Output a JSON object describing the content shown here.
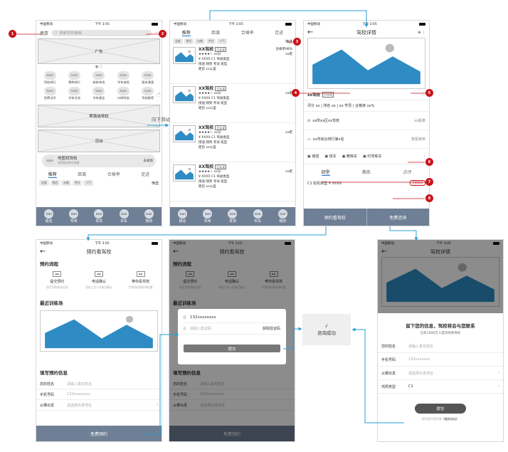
{
  "status": {
    "carrier": "中国移动",
    "time": "下午 3:05"
  },
  "home": {
    "city": "南京",
    "search_placeholder": "搜索驾校/教练",
    "msg_icon": "message-icon",
    "banner": "广告",
    "icons_row1": [
      "驾校排行",
      "教练排行",
      "新练车场",
      "学车流程",
      "租车满意"
    ],
    "icons_row2": [
      "免费试学",
      "学车交流",
      "学车基金",
      "口碑驾校",
      "驾校推荐"
    ],
    "icon_label": "icon",
    "box1": "帮我选驾校",
    "box2": "活动",
    "map_title": "地图找驾校",
    "map_sub": "找驾校去附近地图",
    "map_action": "去发现",
    "tabs": [
      "推荐",
      "距离",
      "合格率",
      "足迹"
    ],
    "chips": [
      "全部",
      "附近",
      "价格",
      "评分",
      "人气"
    ],
    "filter": "筛选",
    "nav": [
      "报名",
      "驾考",
      "发现",
      "买车",
      "我的"
    ]
  },
  "gesture": "向下滑动",
  "list": {
    "tabs": [
      "推荐",
      "距离",
      "合格率",
      "足迹"
    ],
    "chips": [
      "全部",
      "附近",
      "价格",
      "评分",
      "人气"
    ],
    "filter": "筛选",
    "card": {
      "name": "XX驾校",
      "badge": "已认证",
      "rate": "合格率98%",
      "score": "★★★★☆ xx分",
      "dist": "xx距",
      "type": "¥ XXXX C1 驾驶类型",
      "feat": "接送 随到 考试 班型",
      "loc": "距您 xx公里"
    },
    "nav": [
      "报名",
      "驾考",
      "发现",
      "买车",
      "我的"
    ]
  },
  "detail": {
    "title": "驾校详情",
    "name": "xx驾校",
    "badge": "已认证",
    "stats": "评分 xx  |  排名 xx  |  xx 学员  |  合格率 xx%",
    "intro": "xx所xx区xx驾校",
    "intro_right": "xx距离",
    "rank": "xx市综合排行第x名",
    "rank_right": "查看榜单",
    "services": [
      "接送",
      "班车",
      "教练车",
      "约驾练车"
    ],
    "tabs": [
      "班型",
      "教练",
      "点评"
    ],
    "course": "C1 轮机类型 ¥ XXXX",
    "course_tag": "立即报名",
    "btn_left": "预约看驾校",
    "btn_right": "免费咨询"
  },
  "booking": {
    "title": "预约看驾校",
    "flow_title": "预约流程",
    "steps": [
      {
        "t": "提交预约",
        "d": "填写您的基本信息"
      },
      {
        "t": "电话确认",
        "d": "驾校工作人员电话确认"
      },
      {
        "t": "带你看驾校",
        "d": "专属驾校顾问带你看"
      }
    ],
    "train_title": "最近训练场",
    "form_title": "填写预约信息",
    "fields": [
      {
        "label": "您的姓名",
        "value": "请输入真实姓名"
      },
      {
        "label": "手机号码",
        "value": "132xxxxxxxx"
      },
      {
        "label": "从哪出发",
        "value": "请选择出发地址"
      }
    ],
    "cta": "免费预约"
  },
  "modal": {
    "phone": "132xxxxxxxx",
    "code_placeholder": "请输入验证码",
    "code_btn": "获取验证码",
    "submit": "提交"
  },
  "success": {
    "mark": "√",
    "text": "咨询成功"
  },
  "consult": {
    "title": "驾校详情",
    "heading": "留下您的信息，驾校将会与您联系",
    "sub": "已有1000万人成功找到驾校",
    "fields": [
      {
        "label": "您的姓名",
        "value": "请输入真实姓名"
      },
      {
        "label": "手机号码",
        "value": "132xxxxxxx"
      },
      {
        "label": "从哪出发",
        "value": "请选择出发地址"
      },
      {
        "label": "驾照类型",
        "value": "C1"
      }
    ],
    "submit": "提交",
    "agree": "提交即代表同意",
    "agree_link": "《服务协议》"
  },
  "markers": [
    "1",
    "2",
    "3",
    "4",
    "5",
    "6",
    "7",
    "8"
  ]
}
